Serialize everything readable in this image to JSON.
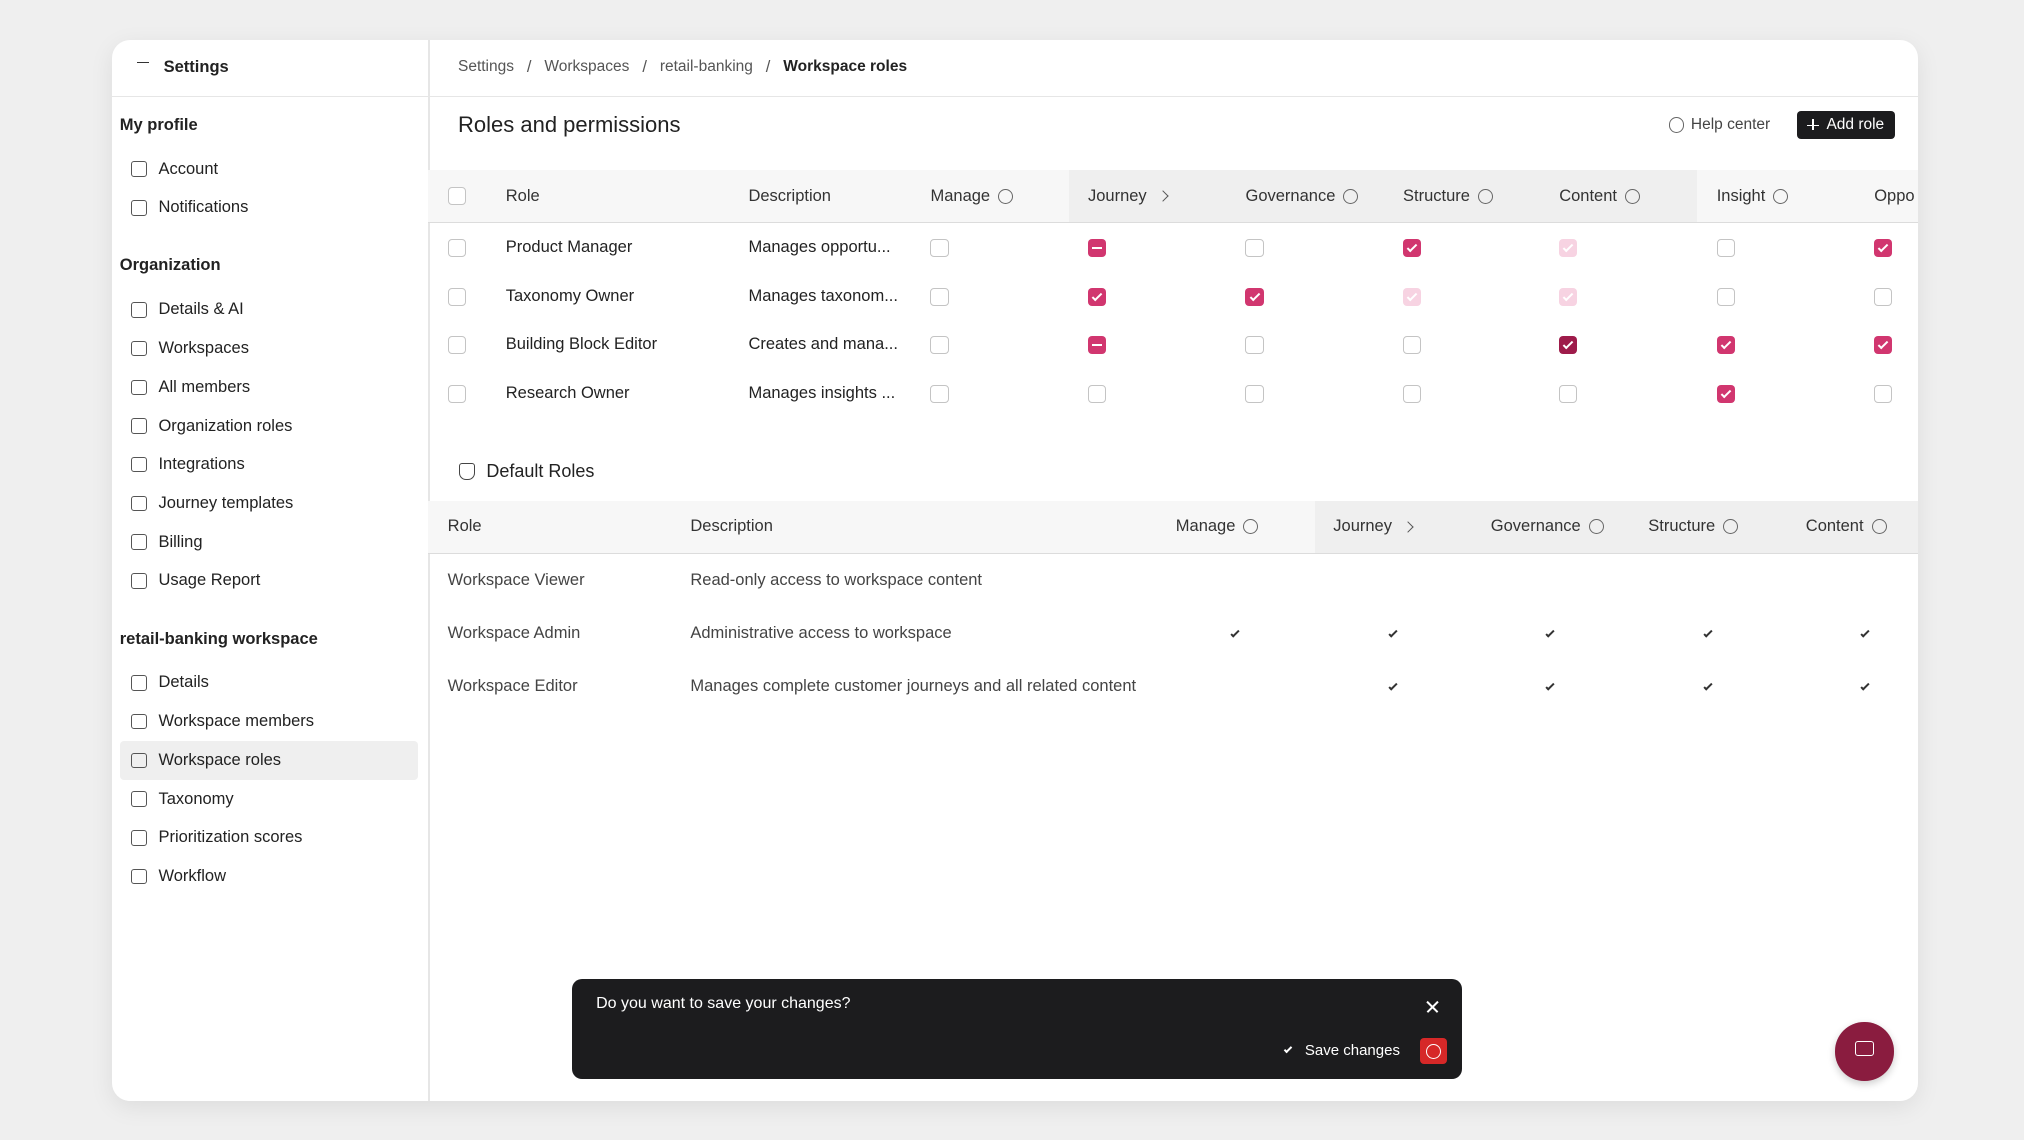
{
  "sidebar": {
    "back_label": "Settings",
    "sections": [
      {
        "title": "My profile",
        "items": [
          "Account",
          "Notifications"
        ]
      },
      {
        "title": "Organization",
        "items": [
          "Details & AI",
          "Workspaces",
          "All members",
          "Organization roles",
          "Integrations",
          "Journey templates",
          "Billing",
          "Usage Report"
        ]
      },
      {
        "title": "retail-banking workspace",
        "items": [
          "Details",
          "Workspace members",
          "Workspace roles",
          "Taxonomy",
          "Prioritization scores",
          "Workflow"
        ],
        "active": 2
      }
    ]
  },
  "breadcrumb": [
    "Settings",
    "Workspaces",
    "retail-banking",
    "Workspace roles"
  ],
  "breadcrumb_separator": "/",
  "header": {
    "title": "Roles and permissions",
    "help": "Help center",
    "add": "Add role"
  },
  "custom_roles": {
    "columns": [
      "Role",
      "Description",
      "Manage",
      "Journey",
      "Governance",
      "Structure",
      "Content",
      "Insight",
      "Oppo"
    ],
    "rows": [
      {
        "role": "Product Manager",
        "description": "Manages opportu...",
        "permissions": [
          "unchecked",
          "indeterminate",
          "unchecked",
          "checked",
          "muted",
          "unchecked",
          "checked"
        ]
      },
      {
        "role": "Taxonomy Owner",
        "description": "Manages taxonom...",
        "permissions": [
          "unchecked",
          "checked",
          "checked",
          "muted",
          "muted",
          "unchecked",
          "unchecked"
        ]
      },
      {
        "role": "Building Block Editor",
        "description": "Creates and mana...",
        "permissions": [
          "unchecked",
          "indeterminate",
          "unchecked",
          "unchecked",
          "dark",
          "checked",
          "checked"
        ]
      },
      {
        "role": "Research Owner",
        "description": "Manages insights ...",
        "permissions": [
          "unchecked",
          "unchecked",
          "unchecked",
          "unchecked",
          "unchecked",
          "checked",
          "unchecked"
        ]
      }
    ]
  },
  "default_roles": {
    "title": "Default Roles",
    "columns": [
      "Role",
      "Description",
      "Manage",
      "Journey",
      "Governance",
      "Structure",
      "Content"
    ],
    "rows": [
      {
        "role": "Workspace Viewer",
        "description": "Read-only access to workspace content",
        "permissions": [
          false,
          false,
          false,
          false,
          false
        ]
      },
      {
        "role": "Workspace Admin",
        "description": "Administrative access to workspace",
        "permissions": [
          true,
          true,
          true,
          true,
          true
        ]
      },
      {
        "role": "Workspace Editor",
        "description": "Manages complete customer journeys and all related content",
        "permissions": [
          false,
          true,
          true,
          true,
          true
        ]
      }
    ]
  },
  "toast": {
    "message": "Do you want to save your changes?",
    "save": "Save changes"
  }
}
